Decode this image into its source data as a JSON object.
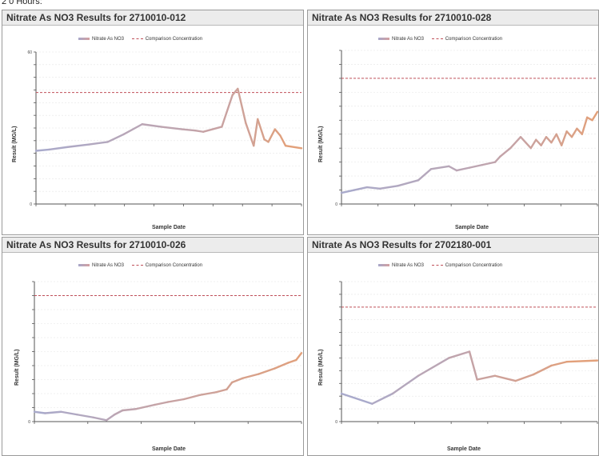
{
  "page": {
    "top_text": "2 0 Hours:"
  },
  "colors": {
    "series_start": "#a9aacb",
    "series_mid": "#c8a2a2",
    "series_end": "#e2a07a",
    "comparison": "#c0505a",
    "grid": "#e6e6e6",
    "axis": "#555555"
  },
  "chart_data": [
    {
      "type": "line",
      "title": "Nitrate As NO3 Results for 2710010-012",
      "xlabel": "Sample Date",
      "ylabel": "Result (MG/L)",
      "legend": {
        "series": "Nitrate As NO3",
        "comparison": "Comparison Concentration",
        "placement": "top-center"
      },
      "ylim": [
        0,
        60
      ],
      "y_ticks": [
        "0",
        "",
        "",
        "",
        "",
        "",
        "",
        "",
        "",
        "",
        "",
        "",
        "60"
      ],
      "comparison_value": 44,
      "x_ticks": [
        "",
        "",
        "",
        "",
        "",
        "",
        "",
        "",
        "",
        ""
      ],
      "series": [
        {
          "name": "Nitrate As NO3",
          "x": [
            0,
            0.05,
            0.12,
            0.2,
            0.27,
            0.33,
            0.4,
            0.47,
            0.55,
            0.6,
            0.63,
            0.7,
            0.74,
            0.76,
            0.79,
            0.82,
            0.835,
            0.86,
            0.875,
            0.9,
            0.92,
            0.94,
            1.0
          ],
          "y": [
            21,
            21.5,
            22.5,
            23.5,
            24.5,
            27.5,
            31.5,
            30.5,
            29.5,
            29,
            28.5,
            30.5,
            43,
            45.5,
            32,
            23,
            33.5,
            25.5,
            24.5,
            29.5,
            27,
            23,
            22
          ]
        }
      ]
    },
    {
      "type": "line",
      "title": "Nitrate As NO3 Results for 2710010-028",
      "xlabel": "Sample Date",
      "ylabel": "Result (MG/L)",
      "legend": {
        "series": "Nitrate As NO3",
        "comparison": "Comparison Concentration",
        "placement": "top-center"
      },
      "ylim": [
        0,
        55
      ],
      "y_ticks": [
        "0",
        "",
        "",
        "",
        "",
        "",
        "",
        "",
        "",
        "",
        "",
        ""
      ],
      "comparison_value": 45,
      "x_ticks": [
        "",
        "",
        "",
        "",
        "",
        "",
        "",
        ""
      ],
      "series": [
        {
          "name": "Nitrate As NO3",
          "x": [
            0,
            0.05,
            0.1,
            0.15,
            0.22,
            0.3,
            0.35,
            0.42,
            0.45,
            0.5,
            0.55,
            0.6,
            0.62,
            0.66,
            0.7,
            0.72,
            0.74,
            0.76,
            0.78,
            0.8,
            0.82,
            0.84,
            0.86,
            0.88,
            0.9,
            0.92,
            0.94,
            0.96,
            0.98,
            1.0
          ],
          "y": [
            4,
            5,
            6,
            5.5,
            6.5,
            8.5,
            12.5,
            13.5,
            12,
            13,
            14,
            15,
            17,
            20,
            24,
            22,
            20,
            23,
            21,
            24,
            22,
            25,
            21,
            26,
            24,
            27,
            25,
            31,
            30,
            33
          ]
        }
      ]
    },
    {
      "type": "line",
      "title": "Nitrate As NO3 Results for 2710010-026",
      "xlabel": "Sample Date",
      "ylabel": "Result (MG/L)",
      "legend": {
        "series": "Nitrate As NO3",
        "comparison": "Comparison Concentration",
        "placement": "top-center"
      },
      "ylim": [
        0,
        50
      ],
      "y_ticks": [
        "0",
        "",
        "",
        "",
        "",
        "",
        "",
        "",
        "",
        "",
        ""
      ],
      "comparison_value": 45,
      "x_ticks": [
        "",
        "",
        "",
        "",
        "",
        ""
      ],
      "series": [
        {
          "name": "Nitrate As NO3",
          "x": [
            0,
            0.04,
            0.1,
            0.16,
            0.22,
            0.27,
            0.3,
            0.33,
            0.38,
            0.45,
            0.5,
            0.56,
            0.62,
            0.68,
            0.72,
            0.74,
            0.78,
            0.84,
            0.9,
            0.95,
            0.98,
            1.0
          ],
          "y": [
            3.5,
            3,
            3.5,
            2.5,
            1.5,
            0.5,
            2.5,
            4,
            4.5,
            6,
            7,
            8,
            9.5,
            10.5,
            11.5,
            14,
            15.5,
            17,
            19,
            21,
            22,
            24.5
          ]
        }
      ]
    },
    {
      "type": "line",
      "title": "Nitrate As NO3 Results for 2702180-001",
      "xlabel": "Sample Date",
      "ylabel": "Result (MG/L)",
      "legend": {
        "series": "Nitrate As NO3",
        "comparison": "Comparison Concentration",
        "placement": "top-center"
      },
      "ylim": [
        0,
        55
      ],
      "y_ticks": [
        "0",
        "",
        "",
        "",
        "",
        "",
        "",
        "",
        "",
        "",
        "",
        ""
      ],
      "comparison_value": 45,
      "x_ticks": [
        "",
        "",
        "",
        "",
        "",
        "",
        "",
        ""
      ],
      "series": [
        {
          "name": "Nitrate As NO3",
          "x": [
            0,
            0.12,
            0.2,
            0.3,
            0.42,
            0.5,
            0.53,
            0.6,
            0.68,
            0.75,
            0.82,
            0.88,
            1.0
          ],
          "y": [
            11,
            7,
            11,
            18,
            25,
            27.5,
            16.5,
            18,
            16,
            18.5,
            22,
            23.5,
            24
          ]
        }
      ]
    }
  ]
}
